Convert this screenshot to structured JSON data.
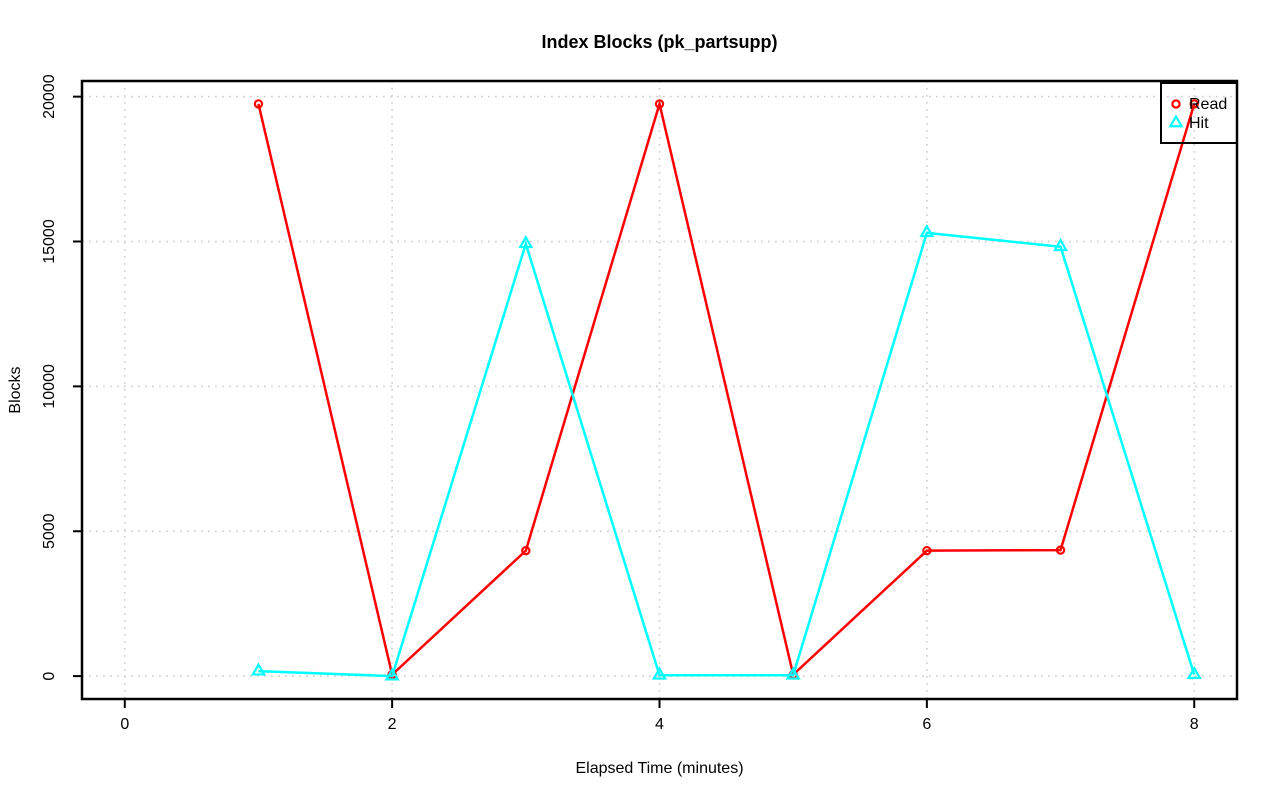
{
  "figure": {
    "background": "#FFFFFF"
  },
  "chart_data": {
    "type": "line",
    "title": "Index Blocks (pk_partsupp)",
    "xlabel": "Elapsed Time (minutes)",
    "ylabel": "Blocks",
    "x": [
      1,
      2,
      3,
      4,
      5,
      6,
      7,
      8
    ],
    "series": [
      {
        "name": "Read",
        "color": "#FF0000",
        "marker": "circle",
        "values": [
          19750,
          50,
          4330,
          19750,
          50,
          4330,
          4350,
          19750
        ]
      },
      {
        "name": "Hit",
        "color": "#00FFFF",
        "marker": "triangle",
        "values": [
          170,
          0,
          14920,
          30,
          30,
          15300,
          14820,
          50
        ]
      }
    ],
    "xlim": [
      0,
      8
    ],
    "ylim": [
      0,
      19750
    ],
    "xticks": [
      0,
      2,
      4,
      6,
      8
    ],
    "xtick_labels": [
      "0",
      "2",
      "4",
      "6",
      "8"
    ],
    "yticks": [
      0,
      5000,
      10000,
      15000,
      20000
    ],
    "ytick_labels": [
      "0",
      "5000",
      "10000",
      "15000",
      "20000"
    ],
    "grid": true,
    "grid_color": "#D3D3D3",
    "axis_color": "#000000",
    "text_color": "#000000",
    "legend": {
      "position": "topright",
      "entries": [
        "Read",
        "Hit"
      ]
    }
  }
}
